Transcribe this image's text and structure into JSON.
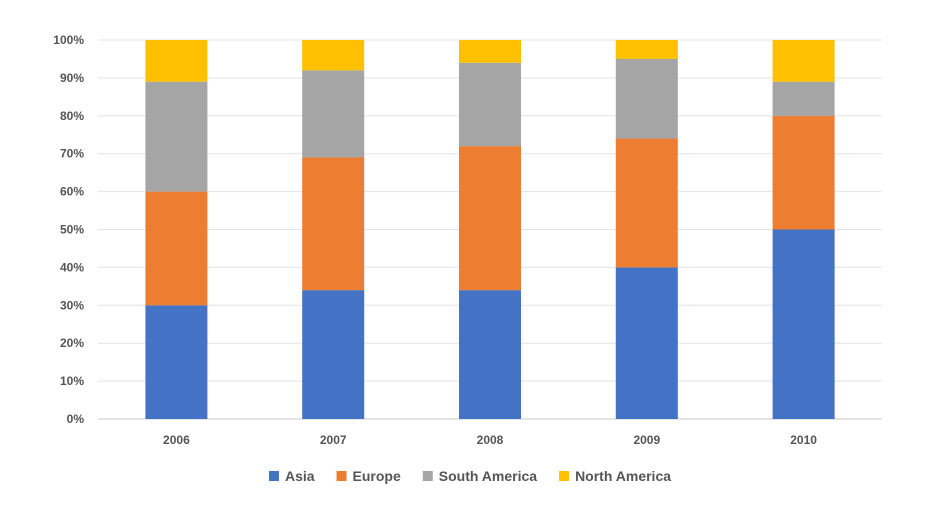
{
  "chart_data": {
    "type": "bar",
    "stacked": true,
    "categories": [
      "2006",
      "2007",
      "2008",
      "2009",
      "2010"
    ],
    "series": [
      {
        "name": "Asia",
        "color": "#4472C4",
        "values": [
          30,
          34,
          34,
          40,
          50
        ]
      },
      {
        "name": "Europe",
        "color": "#ED7D31",
        "values": [
          30,
          35,
          38,
          34,
          30
        ]
      },
      {
        "name": "South America",
        "color": "#A5A5A5",
        "values": [
          29,
          23,
          22,
          21,
          9
        ]
      },
      {
        "name": "North America",
        "color": "#FFC000",
        "values": [
          11,
          8,
          6,
          5,
          11
        ]
      }
    ],
    "ylim": [
      0,
      100
    ],
    "yticks": [
      0,
      10,
      20,
      30,
      40,
      50,
      60,
      70,
      80,
      90,
      100
    ],
    "ytick_labels": [
      "0%",
      "10%",
      "20%",
      "30%",
      "40%",
      "50%",
      "60%",
      "70%",
      "80%",
      "90%",
      "100%"
    ],
    "grid": true,
    "legend_position": "bottom"
  }
}
